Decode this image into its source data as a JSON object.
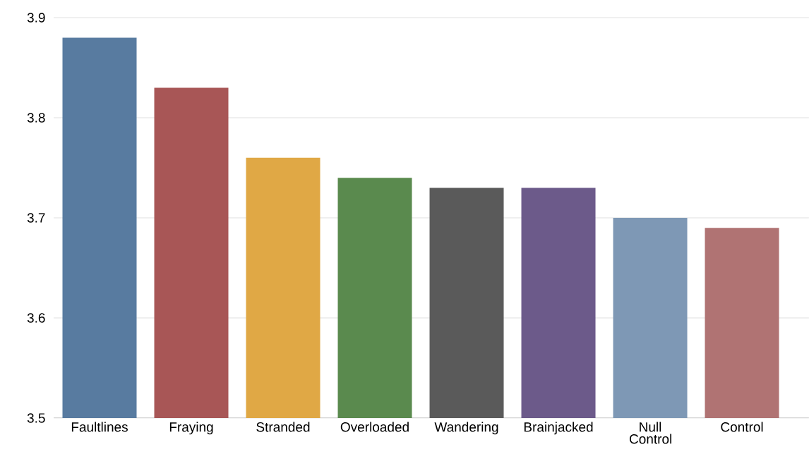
{
  "chart_data": {
    "type": "bar",
    "categories": [
      "Faultlines",
      "Fraying",
      "Stranded",
      "Overloaded",
      "Wandering",
      "Brainjacked",
      "Null Control",
      "Control"
    ],
    "values": [
      3.88,
      3.83,
      3.76,
      3.74,
      3.73,
      3.73,
      3.7,
      3.69
    ],
    "colors": [
      "#587ba0",
      "#a85656",
      "#e0a845",
      "#5a8a4e",
      "#5a5a5a",
      "#6c5a8a",
      "#7e98b5",
      "#b07373"
    ],
    "ylim": [
      3.5,
      3.9
    ],
    "yticks": [
      3.5,
      3.6,
      3.7,
      3.8,
      3.9
    ],
    "grid": "y"
  }
}
